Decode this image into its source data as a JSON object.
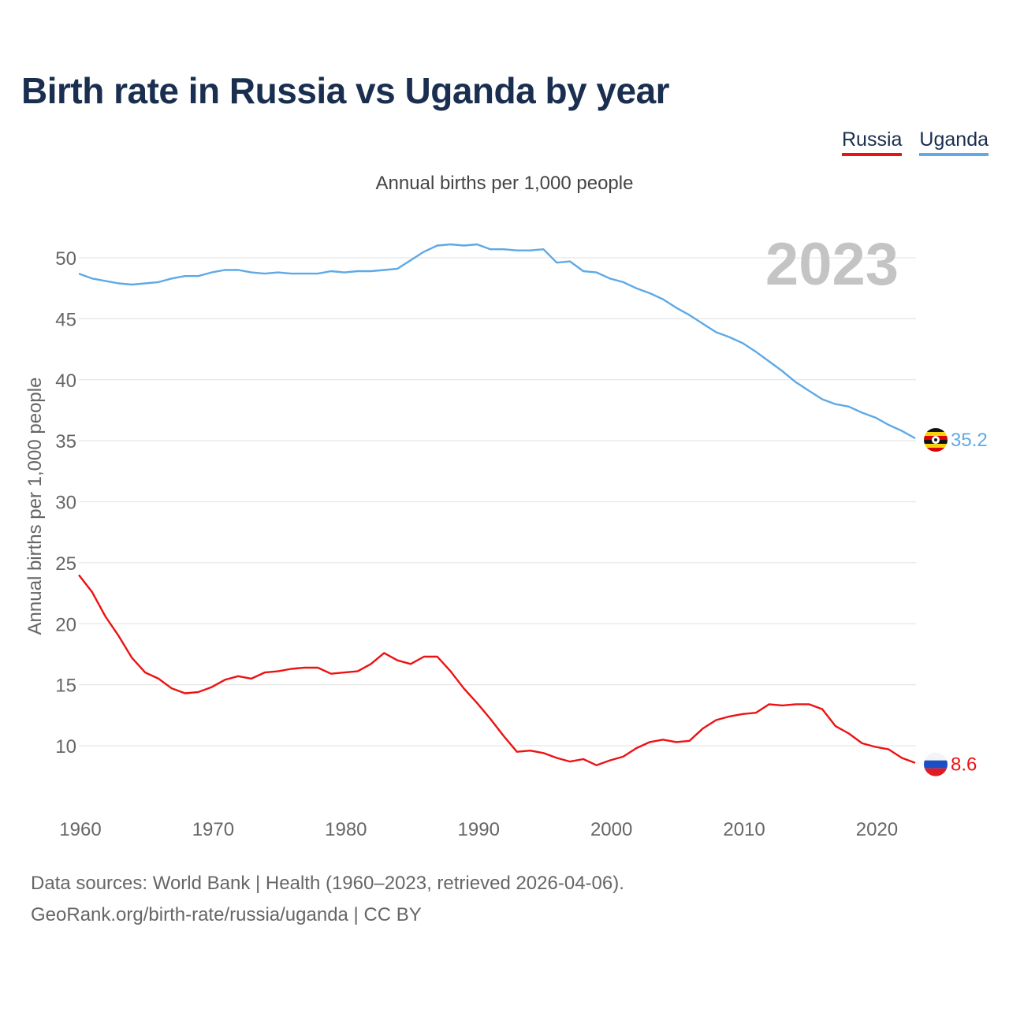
{
  "chart_data": {
    "type": "line",
    "title": "Birth rate in Russia vs Uganda by year",
    "subtitle": "Annual births per 1,000 people",
    "ylabel": "Annual births per 1,000 people",
    "xlabel": "",
    "year_label": "2023",
    "xlim": [
      1960,
      2023
    ],
    "ylim": [
      7,
      52
    ],
    "x_ticks": [
      1960,
      1970,
      1980,
      1990,
      2000,
      2010,
      2020
    ],
    "y_ticks": [
      10,
      15,
      20,
      25,
      30,
      35,
      40,
      45,
      50
    ],
    "grid": true,
    "legend_position": "top-right",
    "x": [
      1960,
      1961,
      1962,
      1963,
      1964,
      1965,
      1966,
      1967,
      1968,
      1969,
      1970,
      1971,
      1972,
      1973,
      1974,
      1975,
      1976,
      1977,
      1978,
      1979,
      1980,
      1981,
      1982,
      1983,
      1984,
      1985,
      1986,
      1987,
      1988,
      1989,
      1990,
      1991,
      1992,
      1993,
      1994,
      1995,
      1996,
      1997,
      1998,
      1999,
      2000,
      2001,
      2002,
      2003,
      2004,
      2005,
      2006,
      2007,
      2008,
      2009,
      2010,
      2011,
      2012,
      2013,
      2014,
      2015,
      2016,
      2017,
      2018,
      2019,
      2020,
      2021,
      2022,
      2023
    ],
    "series": [
      {
        "name": "Russia",
        "color": "#ee1111",
        "end_label": "8.6",
        "flag": "russia",
        "values": [
          24.0,
          22.6,
          20.6,
          19.0,
          17.2,
          16.0,
          15.5,
          14.7,
          14.3,
          14.4,
          14.8,
          15.4,
          15.7,
          15.5,
          16.0,
          16.1,
          16.3,
          16.4,
          16.4,
          15.9,
          16.0,
          16.1,
          16.7,
          17.6,
          17.0,
          16.7,
          17.3,
          17.3,
          16.1,
          14.7,
          13.5,
          12.2,
          10.8,
          9.5,
          9.6,
          9.4,
          9.0,
          8.7,
          8.9,
          8.4,
          8.8,
          9.1,
          9.8,
          10.3,
          10.5,
          10.3,
          10.4,
          11.4,
          12.1,
          12.4,
          12.6,
          12.7,
          13.4,
          13.3,
          13.4,
          13.4,
          13.0,
          11.6,
          11.0,
          10.2,
          9.9,
          9.7,
          9.0,
          8.6
        ]
      },
      {
        "name": "Uganda",
        "color": "#5ea9e6",
        "end_label": "35.2",
        "flag": "uganda",
        "values": [
          48.7,
          48.3,
          48.1,
          47.9,
          47.8,
          47.9,
          48.0,
          48.3,
          48.5,
          48.5,
          48.8,
          49.0,
          49.0,
          48.8,
          48.7,
          48.8,
          48.7,
          48.7,
          48.7,
          48.9,
          48.8,
          48.9,
          48.9,
          49.0,
          49.1,
          49.8,
          50.5,
          51.0,
          51.1,
          51.0,
          51.1,
          50.7,
          50.7,
          50.6,
          50.6,
          50.7,
          49.6,
          49.7,
          48.9,
          48.8,
          48.3,
          48.0,
          47.5,
          47.1,
          46.6,
          45.9,
          45.3,
          44.6,
          43.9,
          43.5,
          43.0,
          42.3,
          41.5,
          40.7,
          39.8,
          39.1,
          38.4,
          38.0,
          37.8,
          37.3,
          36.9,
          36.3,
          35.8,
          35.2
        ]
      }
    ]
  },
  "legend": [
    {
      "label": "Russia",
      "color": "#ee1111"
    },
    {
      "label": "Uganda",
      "color": "#5ea9e6"
    }
  ],
  "footer": {
    "source": "Data sources: World Bank | Health (1960–2023, retrieved 2026-04-06).",
    "credit": "GeoRank.org/birth-rate/russia/uganda | CC BY"
  }
}
